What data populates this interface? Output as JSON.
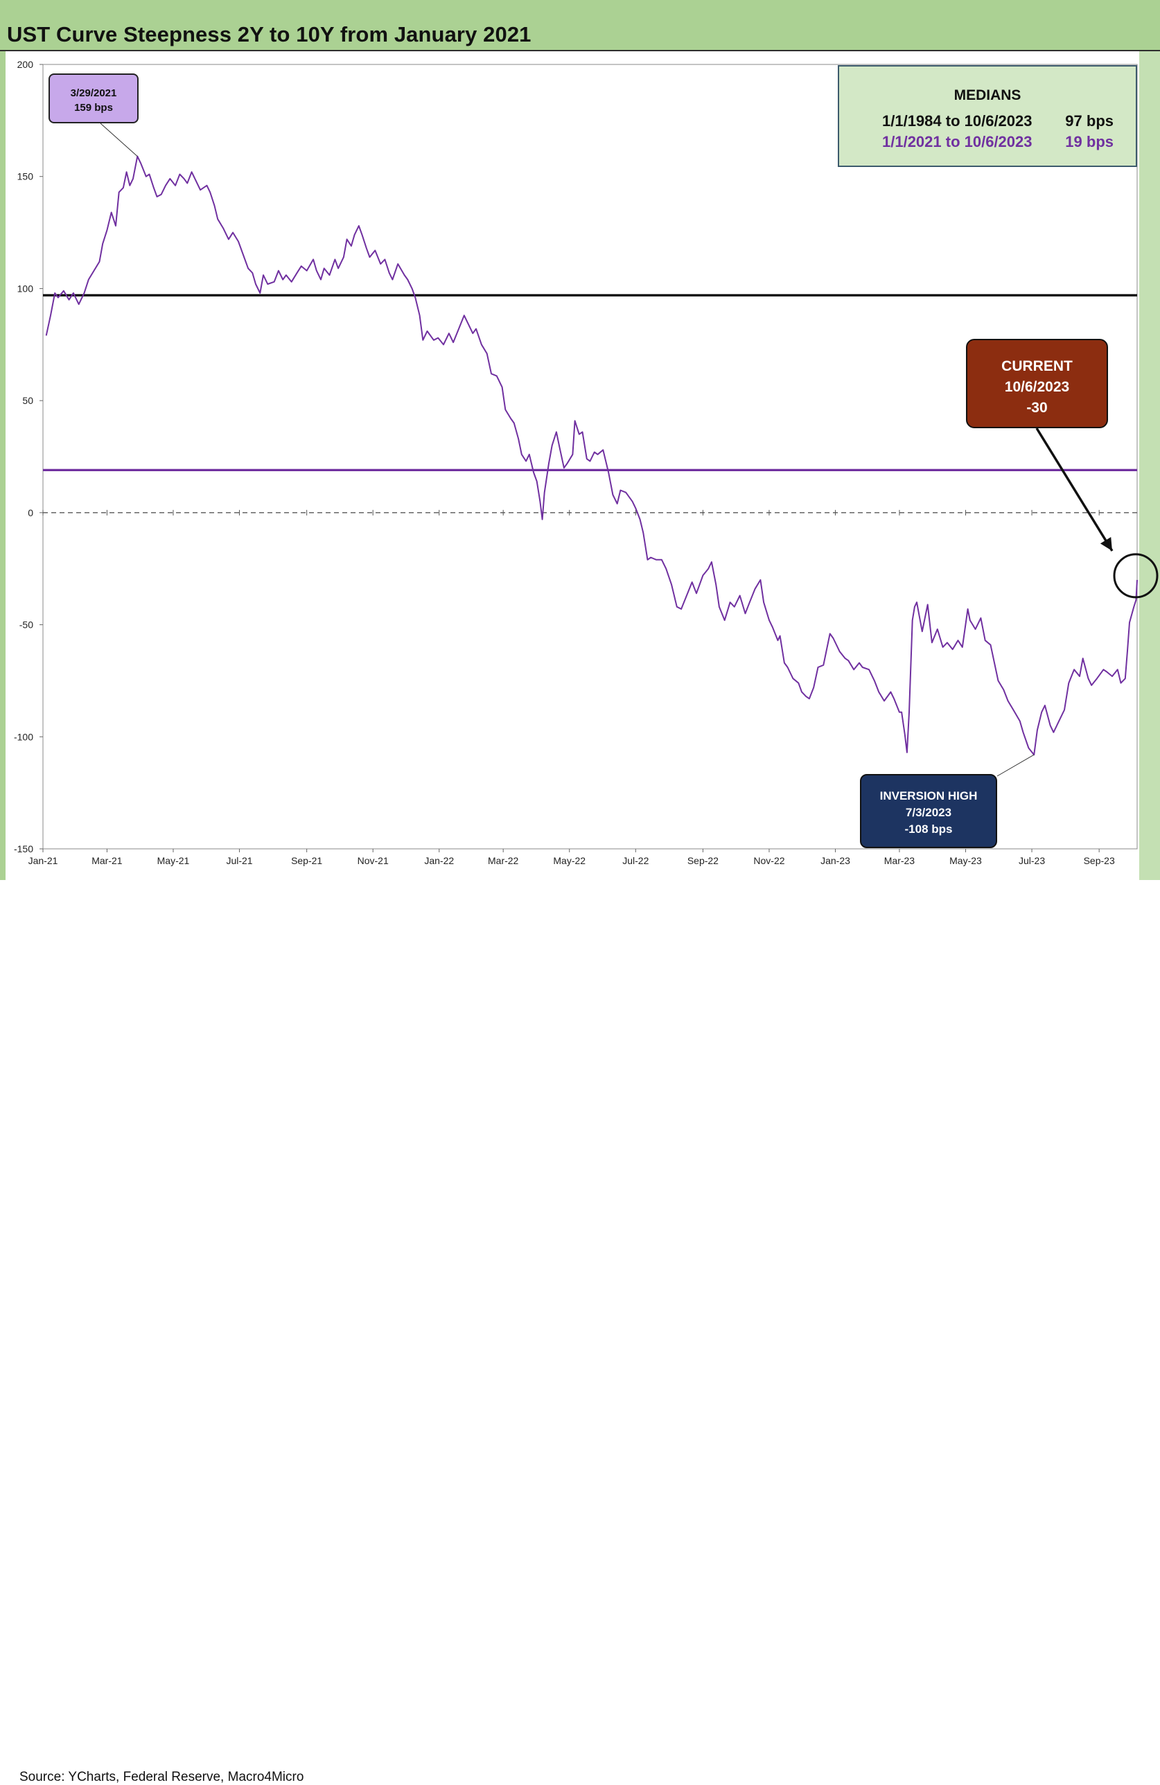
{
  "title": "UST Curve Steepness 2Y to 10Y from January 2021",
  "source": "Source: YCharts, Federal Reserve, Macro4Micro",
  "colors": {
    "series": "#7030a0",
    "median_long": "#000000",
    "median_recent": "#7030a0",
    "frame_green": "#abd193",
    "current_box": "#8c2d10",
    "trough_box": "#1d3461",
    "peak_box": "#c7a8ea",
    "medians_box": "#d3e8c6"
  },
  "annotations": {
    "peak": {
      "date": "3/29/2021",
      "value": "159 bps"
    },
    "medians": {
      "title": "MEDIANS",
      "rows": [
        {
          "range": "1/1/1984 to 10/6/2023",
          "value": "97 bps"
        },
        {
          "range": "1/1/2021 to 10/6/2023",
          "value": "19 bps"
        }
      ]
    },
    "current": {
      "label": "CURRENT",
      "date": "10/6/2023",
      "value": "-30"
    },
    "trough": {
      "label": "INVERSION HIGH",
      "date": "7/3/2023",
      "value": "-108 bps"
    }
  },
  "chart_data": {
    "type": "line",
    "title": "UST Curve Steepness 2Y to 10Y from January 2021",
    "xlabel": "",
    "ylabel": "",
    "ylim": [
      -150,
      200
    ],
    "yticks": [
      200,
      150,
      100,
      50,
      0,
      -50,
      -100,
      -150
    ],
    "xlim": [
      "2021-01-01",
      "2023-10-06"
    ],
    "xticks": [
      {
        "date": "2021-01-01",
        "label": "Jan-21"
      },
      {
        "date": "2021-03-01",
        "label": "Mar-21"
      },
      {
        "date": "2021-05-01",
        "label": "May-21"
      },
      {
        "date": "2021-07-01",
        "label": "Jul-21"
      },
      {
        "date": "2021-09-01",
        "label": "Sep-21"
      },
      {
        "date": "2021-11-01",
        "label": "Nov-21"
      },
      {
        "date": "2022-01-01",
        "label": "Jan-22"
      },
      {
        "date": "2022-03-01",
        "label": "Mar-22"
      },
      {
        "date": "2022-05-01",
        "label": "May-22"
      },
      {
        "date": "2022-07-01",
        "label": "Jul-22"
      },
      {
        "date": "2022-09-01",
        "label": "Sep-22"
      },
      {
        "date": "2022-11-01",
        "label": "Nov-22"
      },
      {
        "date": "2023-01-01",
        "label": "Jan-23"
      },
      {
        "date": "2023-03-01",
        "label": "Mar-23"
      },
      {
        "date": "2023-05-01",
        "label": "May-23"
      },
      {
        "date": "2023-07-01",
        "label": "Jul-23"
      },
      {
        "date": "2023-09-01",
        "label": "Sep-23"
      }
    ],
    "grid": false,
    "reference_lines": [
      {
        "value": 97,
        "color": "#000000",
        "style": "solid"
      },
      {
        "value": 19,
        "color": "#7030a0",
        "style": "solid"
      },
      {
        "value": 0,
        "color": "#444444",
        "style": "dashed"
      }
    ],
    "series": [
      {
        "color": "#7030a0",
        "points": [
          [
            "2021-01-04",
            79
          ],
          [
            "2021-01-08",
            88
          ],
          [
            "2021-01-12",
            98
          ],
          [
            "2021-01-15",
            96
          ],
          [
            "2021-01-20",
            99
          ],
          [
            "2021-01-25",
            95
          ],
          [
            "2021-01-29",
            98
          ],
          [
            "2021-02-03",
            93
          ],
          [
            "2021-02-08",
            98
          ],
          [
            "2021-02-12",
            104
          ],
          [
            "2021-02-17",
            108
          ],
          [
            "2021-02-22",
            112
          ],
          [
            "2021-02-25",
            120
          ],
          [
            "2021-03-01",
            126
          ],
          [
            "2021-03-05",
            134
          ],
          [
            "2021-03-09",
            128
          ],
          [
            "2021-03-12",
            143
          ],
          [
            "2021-03-16",
            145
          ],
          [
            "2021-03-19",
            152
          ],
          [
            "2021-03-22",
            146
          ],
          [
            "2021-03-25",
            149
          ],
          [
            "2021-03-29",
            159
          ],
          [
            "2021-04-01",
            156
          ],
          [
            "2021-04-06",
            150
          ],
          [
            "2021-04-09",
            151
          ],
          [
            "2021-04-13",
            145
          ],
          [
            "2021-04-16",
            141
          ],
          [
            "2021-04-20",
            142
          ],
          [
            "2021-04-24",
            146
          ],
          [
            "2021-04-28",
            149
          ],
          [
            "2021-05-03",
            146
          ],
          [
            "2021-05-07",
            151
          ],
          [
            "2021-05-11",
            149
          ],
          [
            "2021-05-14",
            147
          ],
          [
            "2021-05-18",
            152
          ],
          [
            "2021-05-21",
            149
          ],
          [
            "2021-05-26",
            144
          ],
          [
            "2021-06-01",
            146
          ],
          [
            "2021-06-04",
            143
          ],
          [
            "2021-06-08",
            137
          ],
          [
            "2021-06-11",
            131
          ],
          [
            "2021-06-16",
            127
          ],
          [
            "2021-06-21",
            122
          ],
          [
            "2021-06-25",
            125
          ],
          [
            "2021-06-30",
            121
          ],
          [
            "2021-07-06",
            113
          ],
          [
            "2021-07-09",
            109
          ],
          [
            "2021-07-13",
            107
          ],
          [
            "2021-07-16",
            102
          ],
          [
            "2021-07-20",
            98
          ],
          [
            "2021-07-23",
            106
          ],
          [
            "2021-07-27",
            102
          ],
          [
            "2021-08-02",
            103
          ],
          [
            "2021-08-06",
            108
          ],
          [
            "2021-08-10",
            104
          ],
          [
            "2021-08-13",
            106
          ],
          [
            "2021-08-18",
            103
          ],
          [
            "2021-08-23",
            107
          ],
          [
            "2021-08-27",
            110
          ],
          [
            "2021-09-01",
            108
          ],
          [
            "2021-09-07",
            113
          ],
          [
            "2021-09-10",
            108
          ],
          [
            "2021-09-14",
            104
          ],
          [
            "2021-09-17",
            109
          ],
          [
            "2021-09-22",
            106
          ],
          [
            "2021-09-27",
            113
          ],
          [
            "2021-09-30",
            109
          ],
          [
            "2021-10-05",
            114
          ],
          [
            "2021-10-08",
            122
          ],
          [
            "2021-10-12",
            119
          ],
          [
            "2021-10-15",
            124
          ],
          [
            "2021-10-19",
            128
          ],
          [
            "2021-10-22",
            124
          ],
          [
            "2021-10-26",
            118
          ],
          [
            "2021-10-29",
            114
          ],
          [
            "2021-11-03",
            117
          ],
          [
            "2021-11-08",
            111
          ],
          [
            "2021-11-12",
            113
          ],
          [
            "2021-11-16",
            107
          ],
          [
            "2021-11-19",
            104
          ],
          [
            "2021-11-24",
            111
          ],
          [
            "2021-11-30",
            106
          ],
          [
            "2021-12-03",
            104
          ],
          [
            "2021-12-07",
            100
          ],
          [
            "2021-12-10",
            96
          ],
          [
            "2021-12-14",
            88
          ],
          [
            "2021-12-17",
            77
          ],
          [
            "2021-12-21",
            81
          ],
          [
            "2021-12-27",
            77
          ],
          [
            "2021-12-31",
            78
          ],
          [
            "2022-01-05",
            75
          ],
          [
            "2022-01-10",
            80
          ],
          [
            "2022-01-14",
            76
          ],
          [
            "2022-01-19",
            82
          ],
          [
            "2022-01-24",
            88
          ],
          [
            "2022-01-27",
            85
          ],
          [
            "2022-02-01",
            80
          ],
          [
            "2022-02-04",
            82
          ],
          [
            "2022-02-09",
            75
          ],
          [
            "2022-02-14",
            71
          ],
          [
            "2022-02-18",
            62
          ],
          [
            "2022-02-23",
            61
          ],
          [
            "2022-02-28",
            56
          ],
          [
            "2022-03-03",
            46
          ],
          [
            "2022-03-08",
            42
          ],
          [
            "2022-03-11",
            40
          ],
          [
            "2022-03-15",
            33
          ],
          [
            "2022-03-18",
            26
          ],
          [
            "2022-03-22",
            23
          ],
          [
            "2022-03-25",
            26
          ],
          [
            "2022-03-29",
            18
          ],
          [
            "2022-04-01",
            14
          ],
          [
            "2022-04-04",
            5
          ],
          [
            "2022-04-06",
            -3
          ],
          [
            "2022-04-08",
            9
          ],
          [
            "2022-04-12",
            22
          ],
          [
            "2022-04-15",
            30
          ],
          [
            "2022-04-19",
            36
          ],
          [
            "2022-04-22",
            29
          ],
          [
            "2022-04-26",
            20
          ],
          [
            "2022-04-29",
            22
          ],
          [
            "2022-05-04",
            26
          ],
          [
            "2022-05-06",
            41
          ],
          [
            "2022-05-10",
            35
          ],
          [
            "2022-05-13",
            36
          ],
          [
            "2022-05-17",
            24
          ],
          [
            "2022-05-20",
            23
          ],
          [
            "2022-05-24",
            27
          ],
          [
            "2022-05-27",
            26
          ],
          [
            "2022-06-01",
            28
          ],
          [
            "2022-06-06",
            18
          ],
          [
            "2022-06-10",
            8
          ],
          [
            "2022-06-14",
            4
          ],
          [
            "2022-06-17",
            10
          ],
          [
            "2022-06-22",
            9
          ],
          [
            "2022-06-28",
            5
          ],
          [
            "2022-07-01",
            2
          ],
          [
            "2022-07-05",
            -3
          ],
          [
            "2022-07-08",
            -9
          ],
          [
            "2022-07-12",
            -21
          ],
          [
            "2022-07-15",
            -20
          ],
          [
            "2022-07-20",
            -21
          ],
          [
            "2022-07-25",
            -21
          ],
          [
            "2022-07-29",
            -25
          ],
          [
            "2022-08-03",
            -32
          ],
          [
            "2022-08-08",
            -42
          ],
          [
            "2022-08-12",
            -43
          ],
          [
            "2022-08-17",
            -37
          ],
          [
            "2022-08-22",
            -31
          ],
          [
            "2022-08-26",
            -36
          ],
          [
            "2022-09-01",
            -28
          ],
          [
            "2022-09-06",
            -25
          ],
          [
            "2022-09-09",
            -22
          ],
          [
            "2022-09-13",
            -32
          ],
          [
            "2022-09-16",
            -42
          ],
          [
            "2022-09-21",
            -48
          ],
          [
            "2022-09-26",
            -40
          ],
          [
            "2022-09-30",
            -42
          ],
          [
            "2022-10-05",
            -37
          ],
          [
            "2022-10-10",
            -45
          ],
          [
            "2022-10-14",
            -40
          ],
          [
            "2022-10-19",
            -34
          ],
          [
            "2022-10-24",
            -30
          ],
          [
            "2022-10-27",
            -40
          ],
          [
            "2022-11-01",
            -48
          ],
          [
            "2022-11-04",
            -51
          ],
          [
            "2022-11-09",
            -57
          ],
          [
            "2022-11-11",
            -55
          ],
          [
            "2022-11-15",
            -67
          ],
          [
            "2022-11-18",
            -69
          ],
          [
            "2022-11-23",
            -74
          ],
          [
            "2022-11-28",
            -76
          ],
          [
            "2022-12-01",
            -80
          ],
          [
            "2022-12-05",
            -82
          ],
          [
            "2022-12-08",
            -83
          ],
          [
            "2022-12-12",
            -78
          ],
          [
            "2022-12-16",
            -69
          ],
          [
            "2022-12-21",
            -68
          ],
          [
            "2022-12-27",
            -54
          ],
          [
            "2022-12-30",
            -56
          ],
          [
            "2023-01-05",
            -62
          ],
          [
            "2023-01-10",
            -65
          ],
          [
            "2023-01-13",
            -66
          ],
          [
            "2023-01-18",
            -70
          ],
          [
            "2023-01-23",
            -67
          ],
          [
            "2023-01-26",
            -69
          ],
          [
            "2023-02-01",
            -70
          ],
          [
            "2023-02-06",
            -75
          ],
          [
            "2023-02-10",
            -80
          ],
          [
            "2023-02-15",
            -84
          ],
          [
            "2023-02-21",
            -80
          ],
          [
            "2023-02-24",
            -83
          ],
          [
            "2023-03-01",
            -89
          ],
          [
            "2023-03-03",
            -89
          ],
          [
            "2023-03-06",
            -99
          ],
          [
            "2023-03-08",
            -107
          ],
          [
            "2023-03-10",
            -89
          ],
          [
            "2023-03-13",
            -48
          ],
          [
            "2023-03-15",
            -42
          ],
          [
            "2023-03-17",
            -40
          ],
          [
            "2023-03-22",
            -53
          ],
          [
            "2023-03-27",
            -41
          ],
          [
            "2023-03-31",
            -58
          ],
          [
            "2023-04-05",
            -52
          ],
          [
            "2023-04-10",
            -60
          ],
          [
            "2023-04-14",
            -58
          ],
          [
            "2023-04-19",
            -61
          ],
          [
            "2023-04-24",
            -57
          ],
          [
            "2023-04-28",
            -60
          ],
          [
            "2023-05-03",
            -43
          ],
          [
            "2023-05-05",
            -48
          ],
          [
            "2023-05-10",
            -52
          ],
          [
            "2023-05-15",
            -47
          ],
          [
            "2023-05-19",
            -57
          ],
          [
            "2023-05-24",
            -59
          ],
          [
            "2023-05-31",
            -75
          ],
          [
            "2023-06-05",
            -79
          ],
          [
            "2023-06-09",
            -84
          ],
          [
            "2023-06-14",
            -88
          ],
          [
            "2023-06-20",
            -93
          ],
          [
            "2023-06-23",
            -98
          ],
          [
            "2023-06-28",
            -105
          ],
          [
            "2023-07-03",
            -108
          ],
          [
            "2023-07-06",
            -97
          ],
          [
            "2023-07-10",
            -89
          ],
          [
            "2023-07-13",
            -86
          ],
          [
            "2023-07-18",
            -95
          ],
          [
            "2023-07-21",
            -98
          ],
          [
            "2023-07-26",
            -93
          ],
          [
            "2023-07-31",
            -88
          ],
          [
            "2023-08-04",
            -76
          ],
          [
            "2023-08-09",
            -70
          ],
          [
            "2023-08-14",
            -73
          ],
          [
            "2023-08-17",
            -65
          ],
          [
            "2023-08-22",
            -74
          ],
          [
            "2023-08-25",
            -77
          ],
          [
            "2023-08-30",
            -74
          ],
          [
            "2023-09-05",
            -70
          ],
          [
            "2023-09-08",
            -71
          ],
          [
            "2023-09-13",
            -73
          ],
          [
            "2023-09-18",
            -70
          ],
          [
            "2023-09-21",
            -76
          ],
          [
            "2023-09-25",
            -74
          ],
          [
            "2023-09-27",
            -62
          ],
          [
            "2023-09-29",
            -49
          ],
          [
            "2023-10-03",
            -42
          ],
          [
            "2023-10-05",
            -39
          ],
          [
            "2023-10-06",
            -30
          ]
        ]
      }
    ]
  }
}
